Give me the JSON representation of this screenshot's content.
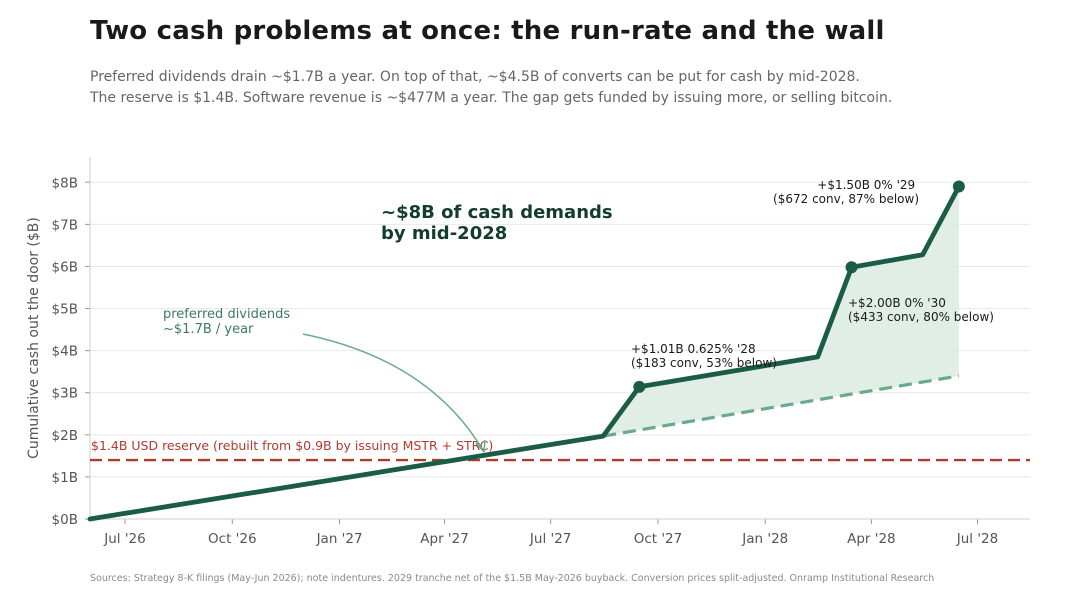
{
  "header": {
    "title": "Two cash problems at once: the run-rate and the wall",
    "subtitle_line1": "Preferred dividends drain ~$1.7B a year. On top of that, ~$4.5B of converts can be put for cash by mid-2028.",
    "subtitle_line2": "The reserve is $1.4B. Software revenue is ~$477M a year. The gap gets funded by issuing more, or selling bitcoin."
  },
  "footer": {
    "source": "Sources: Strategy 8-K filings (May-Jun 2026); note indentures. 2029 tranche net of the $1.5B May-2026 buyback. Conversion prices split-adjusted.  Onramp Institutional Research"
  },
  "chart_data": {
    "type": "line",
    "ylabel": "Cumulative cash out the door ($B)",
    "ylim": [
      0,
      8.6
    ],
    "y_ticks": [
      0,
      1,
      2,
      3,
      4,
      5,
      6,
      7,
      8
    ],
    "y_tick_labels": [
      "$0B",
      "$1B",
      "$2B",
      "$3B",
      "$4B",
      "$5B",
      "$6B",
      "$7B",
      "$8B"
    ],
    "xlim": [
      "2026-06-01",
      "2028-08-15"
    ],
    "x_ticks": [
      "2026-07-01",
      "2026-10-01",
      "2027-01-01",
      "2027-04-01",
      "2027-07-01",
      "2027-10-01",
      "2028-01-01",
      "2028-04-01",
      "2028-07-01"
    ],
    "x_tick_labels": [
      "Jul '26",
      "Oct '26",
      "Jan '27",
      "Apr '27",
      "Jul '27",
      "Oct '27",
      "Jan '28",
      "Apr '28",
      "Jul '28"
    ],
    "grid": true,
    "series": [
      {
        "role": "total",
        "color": "#1a5c45",
        "points": [
          {
            "x": "2026-06-01",
            "y": 0.0
          },
          {
            "x": "2027-08-15",
            "y": 1.97
          },
          {
            "x": "2027-09-15",
            "y": 3.14
          },
          {
            "x": "2028-02-15",
            "y": 3.85
          },
          {
            "x": "2028-03-15",
            "y": 5.98
          },
          {
            "x": "2028-05-15",
            "y": 6.28
          },
          {
            "x": "2028-06-15",
            "y": 7.9
          }
        ]
      },
      {
        "role": "dividends_only",
        "color": "#6aaa8c",
        "style": "dashed",
        "points": [
          {
            "x": "2027-08-15",
            "y": 1.97
          },
          {
            "x": "2028-06-15",
            "y": 3.4
          }
        ]
      }
    ],
    "markers": [
      {
        "x": "2027-09-15",
        "y": 3.14
      },
      {
        "x": "2028-03-15",
        "y": 5.98
      },
      {
        "x": "2028-06-15",
        "y": 7.9
      }
    ],
    "reference_line": {
      "y": 1.4,
      "color": "#b03a2e",
      "label": "$1.4B USD reserve  (rebuilt from $0.9B by issuing MSTR + STRC)"
    },
    "annotations": {
      "headline_line1": "~$8B of cash demands",
      "headline_line2": "by mid-2028",
      "dividends_line1": "preferred dividends",
      "dividends_line2": "~$1.7B / year",
      "conv28_line1": "+$1.01B 0.625% '28",
      "conv28_line2": "($183 conv, 53% below)",
      "conv30_line1": "+$2.00B 0% '30",
      "conv30_line2": "($433 conv, 80% below)",
      "conv29_line1": "+$1.50B 0% '29",
      "conv29_line2": "($672 conv, 87% below)"
    },
    "colors": {
      "line": "#1a5c45",
      "fill": "#dcebe2",
      "dashed": "#6aaa8c",
      "reserve": "#b03a2e",
      "dividends_text": "#3d7a5e"
    }
  }
}
